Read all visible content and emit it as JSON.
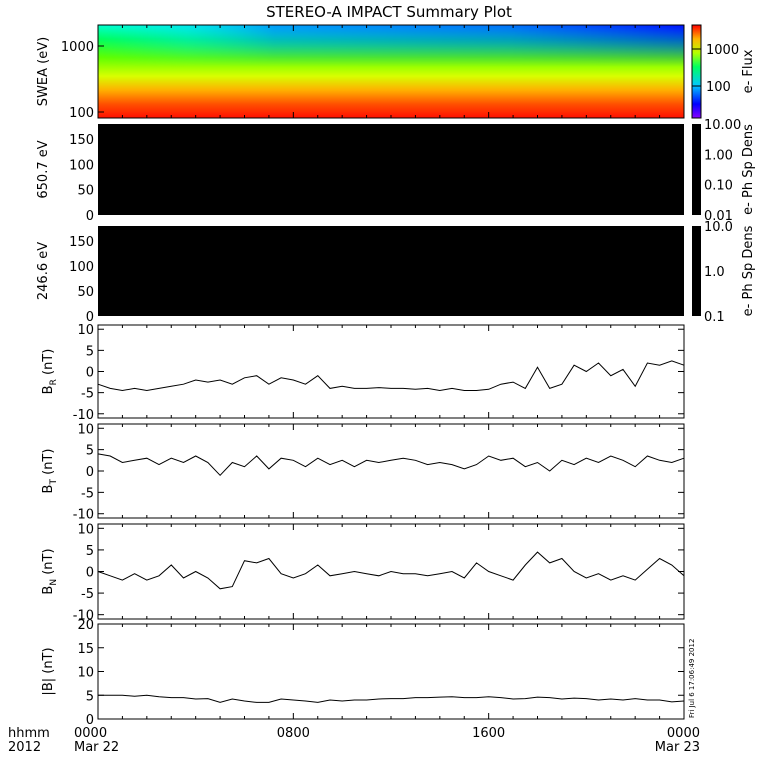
{
  "title": "STEREO-A IMPACT Summary Plot",
  "x_axis": {
    "row1_label": "hhmm",
    "row2_label": "2012",
    "ticks": [
      "0000",
      "0800",
      "1600",
      "0000"
    ],
    "dates": [
      "Mar 22",
      "Mar 23"
    ]
  },
  "timestamp": "Fri Jul  6 17:06:49 2012",
  "colors": {
    "background": "#ffffff",
    "axes": "#000000",
    "fill": "#000000"
  },
  "chart_data": [
    {
      "type": "heatmap",
      "ylabel": "SWEA (eV)",
      "yticks": [
        "1000",
        "100"
      ],
      "colorbar_label": "e- Flux",
      "colorbar_ticks": [
        "1000",
        "100"
      ],
      "colormap": "rainbow",
      "scale": "log",
      "description_values": {
        "energy_range_eV": [
          90,
          2000
        ],
        "flux_range": [
          20,
          8000
        ]
      }
    },
    {
      "type": "heatmap",
      "ylabel": "650.7 eV",
      "yticks": [
        "150",
        "100",
        "50",
        "0"
      ],
      "ylim": [
        0,
        180
      ],
      "colorbar_label": "e- Ph Sp Dens",
      "colorbar_ticks": [
        "10.00",
        "1.00",
        "0.10",
        "0.01"
      ],
      "fill_color": "#000000"
    },
    {
      "type": "heatmap",
      "ylabel": "246.6 eV",
      "yticks": [
        "150",
        "100",
        "50",
        "0"
      ],
      "ylim": [
        0,
        180
      ],
      "colorbar_label": "e- Ph Sp Dens",
      "colorbar_ticks": [
        "10.0",
        "1.0",
        "0.1"
      ],
      "fill_color": "#000000"
    },
    {
      "type": "line",
      "ylabel": "B_R (nT)",
      "ylabel_main": "B",
      "ylabel_sub": "R",
      "ylabel_unit": "(nT)",
      "yticks": [
        "10",
        "5",
        "0",
        "-5",
        "-10"
      ],
      "ylim": [
        -11,
        11
      ],
      "x_hours": [
        0,
        0.5,
        1,
        1.5,
        2,
        2.5,
        3,
        3.5,
        4,
        4.5,
        5,
        5.5,
        6,
        6.5,
        7,
        7.5,
        8,
        8.5,
        9,
        9.5,
        10,
        10.5,
        11,
        11.5,
        12,
        12.5,
        13,
        13.5,
        14,
        14.5,
        15,
        15.5,
        16,
        16.5,
        17,
        17.5,
        18,
        18.5,
        19,
        19.5,
        20,
        20.5,
        21,
        21.5,
        22,
        22.5,
        23,
        23.5,
        24
      ],
      "values": [
        -3,
        -4,
        -4.5,
        -4,
        -4.5,
        -4,
        -3.5,
        -3,
        -2,
        -2.5,
        -2,
        -3,
        -1.5,
        -1,
        -3,
        -1.5,
        -2,
        -3,
        -1,
        -4,
        -3.5,
        -4,
        -4,
        -3.8,
        -4,
        -4,
        -4.2,
        -4,
        -4.5,
        -4,
        -4.5,
        -4.5,
        -4.2,
        -3,
        -2.5,
        -4,
        1,
        -4,
        -3,
        1.5,
        0,
        2,
        -1,
        0.5,
        -3.5,
        2,
        1.5,
        2.5,
        1.5
      ]
    },
    {
      "type": "line",
      "ylabel": "B_T (nT)",
      "ylabel_main": "B",
      "ylabel_sub": "T",
      "ylabel_unit": "(nT)",
      "yticks": [
        "10",
        "5",
        "0",
        "-5",
        "-10"
      ],
      "ylim": [
        -11,
        11
      ],
      "x_hours": [
        0,
        0.5,
        1,
        1.5,
        2,
        2.5,
        3,
        3.5,
        4,
        4.5,
        5,
        5.5,
        6,
        6.5,
        7,
        7.5,
        8,
        8.5,
        9,
        9.5,
        10,
        10.5,
        11,
        11.5,
        12,
        12.5,
        13,
        13.5,
        14,
        14.5,
        15,
        15.5,
        16,
        16.5,
        17,
        17.5,
        18,
        18.5,
        19,
        19.5,
        20,
        20.5,
        21,
        21.5,
        22,
        22.5,
        23,
        23.5,
        24
      ],
      "values": [
        4,
        3.5,
        2,
        2.5,
        3,
        1.5,
        3,
        2,
        3.5,
        2,
        -1,
        2,
        1,
        3.5,
        0.5,
        3,
        2.5,
        1,
        3,
        1.5,
        2.5,
        1,
        2.5,
        2,
        2.5,
        3,
        2.5,
        1.5,
        2,
        1.5,
        0.5,
        1.5,
        3.5,
        2.5,
        3,
        1,
        2,
        0,
        2.5,
        1.5,
        3,
        2,
        3.5,
        2.5,
        1,
        3.5,
        2.5,
        2,
        3
      ]
    },
    {
      "type": "line",
      "ylabel": "B_N (nT)",
      "ylabel_main": "B",
      "ylabel_sub": "N",
      "ylabel_unit": "(nT)",
      "yticks": [
        "10",
        "5",
        "0",
        "-5",
        "-10"
      ],
      "ylim": [
        -11,
        11
      ],
      "x_hours": [
        0,
        0.5,
        1,
        1.5,
        2,
        2.5,
        3,
        3.5,
        4,
        4.5,
        5,
        5.5,
        6,
        6.5,
        7,
        7.5,
        8,
        8.5,
        9,
        9.5,
        10,
        10.5,
        11,
        11.5,
        12,
        12.5,
        13,
        13.5,
        14,
        14.5,
        15,
        15.5,
        16,
        16.5,
        17,
        17.5,
        18,
        18.5,
        19,
        19.5,
        20,
        20.5,
        21,
        21.5,
        22,
        22.5,
        23,
        23.5,
        24
      ],
      "values": [
        0,
        -1,
        -2,
        -0.5,
        -2,
        -1,
        1.5,
        -1.5,
        0,
        -1.5,
        -4,
        -3.5,
        2.5,
        2,
        3,
        -0.5,
        -1.5,
        -0.5,
        1.5,
        -1,
        -0.5,
        0,
        -0.5,
        -1,
        0,
        -0.5,
        -0.5,
        -1,
        -0.5,
        0,
        -1.5,
        2,
        0,
        -1,
        -2,
        1.5,
        4.5,
        2,
        3,
        0,
        -1.5,
        -0.5,
        -2,
        -1,
        -2,
        0.5,
        3,
        1.5,
        -1
      ]
    },
    {
      "type": "line",
      "ylabel": "|B| (nT)",
      "yticks": [
        "20",
        "15",
        "10",
        "5",
        "0"
      ],
      "ylim": [
        0,
        20
      ],
      "x_hours": [
        0,
        0.5,
        1,
        1.5,
        2,
        2.5,
        3,
        3.5,
        4,
        4.5,
        5,
        5.5,
        6,
        6.5,
        7,
        7.5,
        8,
        8.5,
        9,
        9.5,
        10,
        10.5,
        11,
        11.5,
        12,
        12.5,
        13,
        13.5,
        14,
        14.5,
        15,
        15.5,
        16,
        16.5,
        17,
        17.5,
        18,
        18.5,
        19,
        19.5,
        20,
        20.5,
        21,
        21.5,
        22,
        22.5,
        23,
        23.5,
        24
      ],
      "values": [
        5,
        5,
        5,
        4.8,
        5,
        4.7,
        4.5,
        4.5,
        4.2,
        4.3,
        3.5,
        4.2,
        3.8,
        3.5,
        3.5,
        4.2,
        4,
        3.8,
        3.5,
        4,
        3.8,
        4,
        4,
        4.2,
        4.3,
        4.3,
        4.5,
        4.5,
        4.6,
        4.7,
        4.5,
        4.5,
        4.7,
        4.5,
        4.2,
        4.3,
        4.6,
        4.5,
        4.2,
        4.4,
        4.3,
        4,
        4.2,
        4,
        4.3,
        4,
        4,
        3.6,
        3.8
      ]
    }
  ]
}
